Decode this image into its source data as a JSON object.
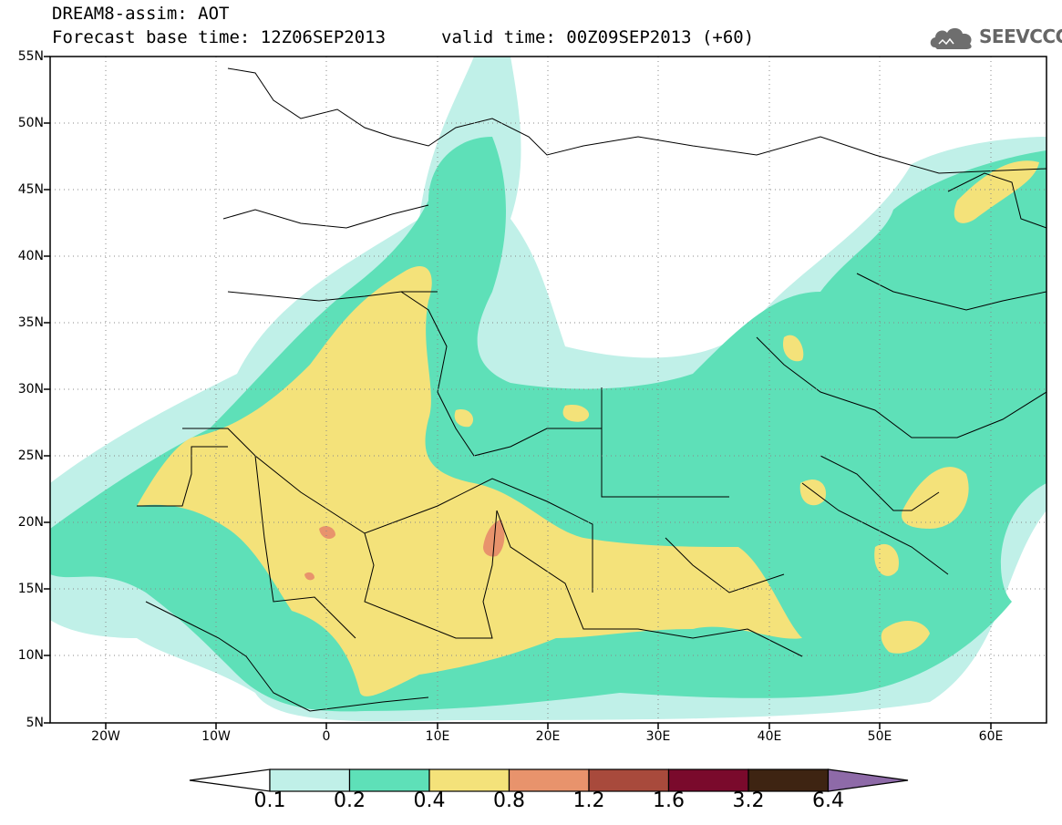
{
  "header": {
    "line1": "DREAM8-assim: AOT",
    "line2": "Forecast base time: 12Z06SEP2013",
    "line3": "valid time: 00Z09SEP2013 (+60)"
  },
  "logo": {
    "text": "SEEVCCC",
    "color": "#666666"
  },
  "axes": {
    "lat_labels": [
      "55N",
      "50N",
      "45N",
      "40N",
      "35N",
      "30N",
      "25N",
      "20N",
      "15N",
      "10N",
      "5N"
    ],
    "lon_labels": [
      "20W",
      "10W",
      "0",
      "10E",
      "20E",
      "30E",
      "40E",
      "50E",
      "60E"
    ]
  },
  "map_data": {
    "variable": "AOT",
    "region": {
      "lon_min": -25,
      "lon_max": 65,
      "lat_min": 5,
      "lat_max": 55
    },
    "levels": [
      "0.1",
      "0.2",
      "0.4",
      "0.8",
      "1.2",
      "1.6",
      "3.2",
      "6.4"
    ],
    "colors": [
      "#ffffff",
      "#c0f0e8",
      "#5ee0b8",
      "#f4e27a",
      "#e8936c",
      "#a84a3c",
      "#7a0a2c",
      "#3e2412",
      "#8e6aa8"
    ]
  },
  "colorbar": {
    "labels": [
      "0.1",
      "0.2",
      "0.4",
      "0.8",
      "1.2",
      "1.6",
      "3.2",
      "6.4"
    ]
  }
}
